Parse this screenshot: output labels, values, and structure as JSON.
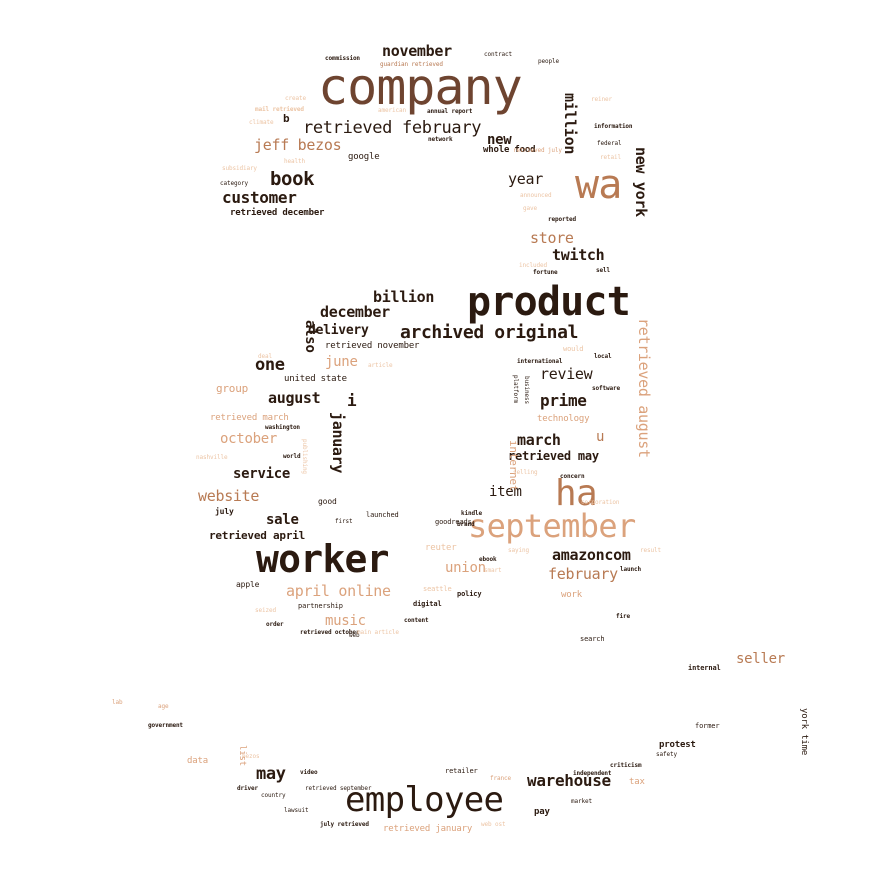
{
  "palette": {
    "dark": "#2b1a10",
    "brown": "#6e4430",
    "copper": "#b87a53",
    "peach": "#dba27c",
    "light": "#ecc4a4"
  },
  "words": [
    {
      "id": "product",
      "text": "product",
      "color": "dark"
    },
    {
      "id": "company",
      "text": "company",
      "color": "brown"
    },
    {
      "id": "worker",
      "text": "worker",
      "color": "dark"
    },
    {
      "id": "employee",
      "text": "employee",
      "color": "dark"
    },
    {
      "id": "september",
      "text": "september",
      "color": "peach"
    },
    {
      "id": "ha",
      "text": "ha",
      "color": "copper"
    },
    {
      "id": "wa",
      "text": "wa",
      "color": "copper"
    },
    {
      "id": "retrieved-february",
      "text": "retrieved february",
      "color": "dark"
    },
    {
      "id": "archived-original",
      "text": "archived original",
      "color": "dark"
    },
    {
      "id": "jeff-bezos",
      "text": "jeff bezos",
      "color": "copper"
    },
    {
      "id": "book",
      "text": "book",
      "color": "dark"
    },
    {
      "id": "customer",
      "text": "customer",
      "color": "dark"
    },
    {
      "id": "november",
      "text": "november",
      "color": "dark"
    },
    {
      "id": "new",
      "text": "new",
      "color": "dark"
    },
    {
      "id": "million",
      "text": "million",
      "color": "dark"
    },
    {
      "id": "new-york",
      "text": "new york",
      "color": "dark"
    },
    {
      "id": "year",
      "text": "year",
      "color": "dark"
    },
    {
      "id": "store",
      "text": "store",
      "color": "copper"
    },
    {
      "id": "twitch",
      "text": "twitch",
      "color": "dark"
    },
    {
      "id": "billion",
      "text": "billion",
      "color": "dark"
    },
    {
      "id": "december",
      "text": "december",
      "color": "dark"
    },
    {
      "id": "delivery",
      "text": "delivery",
      "color": "dark"
    },
    {
      "id": "also",
      "text": "also",
      "color": "dark"
    },
    {
      "id": "one",
      "text": "one",
      "color": "dark"
    },
    {
      "id": "june",
      "text": "june",
      "color": "peach"
    },
    {
      "id": "review",
      "text": "review",
      "color": "dark"
    },
    {
      "id": "retrieved-august",
      "text": "retrieved august",
      "color": "peach"
    },
    {
      "id": "prime",
      "text": "prime",
      "color": "dark"
    },
    {
      "id": "august",
      "text": "august",
      "color": "dark"
    },
    {
      "id": "october",
      "text": "october",
      "color": "peach"
    },
    {
      "id": "january",
      "text": "january",
      "color": "dark"
    },
    {
      "id": "march",
      "text": "march",
      "color": "dark"
    },
    {
      "id": "u",
      "text": "u",
      "color": "copper"
    },
    {
      "id": "retrieved-may",
      "text": "retrieved may",
      "color": "dark"
    },
    {
      "id": "service",
      "text": "service",
      "color": "dark"
    },
    {
      "id": "website",
      "text": "website",
      "color": "copper"
    },
    {
      "id": "item",
      "text": "item",
      "color": "dark"
    },
    {
      "id": "sale",
      "text": "sale",
      "color": "dark"
    },
    {
      "id": "retrieved-april",
      "text": "retrieved april",
      "color": "dark"
    },
    {
      "id": "amazoncom",
      "text": "amazoncom",
      "color": "dark"
    },
    {
      "id": "union",
      "text": "union",
      "color": "peach"
    },
    {
      "id": "february",
      "text": "february",
      "color": "copper"
    },
    {
      "id": "april-online",
      "text": "april online",
      "color": "peach"
    },
    {
      "id": "music",
      "text": "music",
      "color": "peach"
    },
    {
      "id": "seller",
      "text": "seller",
      "color": "copper"
    },
    {
      "id": "may",
      "text": "may",
      "color": "dark"
    },
    {
      "id": "warehouse",
      "text": "warehouse",
      "color": "dark"
    },
    {
      "id": "retrieved-december",
      "text": "retrieved december",
      "color": "dark"
    },
    {
      "id": "group",
      "text": "group",
      "color": "peach"
    },
    {
      "id": "internet",
      "text": "internet",
      "color": "peach"
    },
    {
      "id": "b",
      "text": "b",
      "color": "dark"
    },
    {
      "id": "google",
      "text": "google",
      "color": "dark"
    },
    {
      "id": "whole-food",
      "text": "whole food",
      "color": "dark"
    },
    {
      "id": "i",
      "text": "i",
      "color": "dark"
    },
    {
      "id": "united-state",
      "text": "united state",
      "color": "dark"
    },
    {
      "id": "retrieved-march",
      "text": "retrieved march",
      "color": "peach"
    },
    {
      "id": "technology",
      "text": "technology",
      "color": "peach"
    },
    {
      "id": "retrieved-november",
      "text": "retrieved november",
      "color": "dark"
    },
    {
      "id": "reuter",
      "text": "reuter",
      "color": "light"
    },
    {
      "id": "york-time",
      "text": "york time",
      "color": "dark"
    },
    {
      "id": "protest",
      "text": "protest",
      "color": "dark"
    },
    {
      "id": "retrieved-january",
      "text": "retrieved january",
      "color": "peach"
    },
    {
      "id": "pay",
      "text": "pay",
      "color": "dark"
    },
    {
      "id": "data",
      "text": "data",
      "color": "peach"
    },
    {
      "id": "july",
      "text": "july",
      "color": "dark"
    },
    {
      "id": "apple",
      "text": "apple",
      "color": "dark"
    },
    {
      "id": "good",
      "text": "good",
      "color": "dark"
    },
    {
      "id": "policy",
      "text": "policy",
      "color": "dark"
    },
    {
      "id": "digital",
      "text": "digital",
      "color": "dark"
    },
    {
      "id": "partnership",
      "text": "partnership",
      "color": "dark"
    },
    {
      "id": "launched",
      "text": "launched",
      "color": "dark"
    },
    {
      "id": "goodreads",
      "text": "goodreads",
      "color": "dark"
    },
    {
      "id": "seattle",
      "text": "seattle",
      "color": "light"
    },
    {
      "id": "workplace",
      "text": "work",
      "color": "peach"
    },
    {
      "id": "search",
      "text": "search",
      "color": "dark"
    },
    {
      "id": "retailer",
      "text": "retailer",
      "color": "dark"
    },
    {
      "id": "independent",
      "text": "independent",
      "color": "dark"
    },
    {
      "id": "market",
      "text": "market",
      "color": "dark"
    },
    {
      "id": "tax",
      "text": "tax",
      "color": "peach"
    },
    {
      "id": "safety",
      "text": "safety",
      "color": "dark"
    },
    {
      "id": "criticism",
      "text": "criticism",
      "color": "dark"
    },
    {
      "id": "former",
      "text": "former",
      "color": "dark"
    },
    {
      "id": "internal",
      "text": "internal",
      "color": "dark"
    },
    {
      "id": "government",
      "text": "government",
      "color": "dark"
    },
    {
      "id": "country",
      "text": "country",
      "color": "dark"
    },
    {
      "id": "video",
      "text": "video",
      "color": "dark"
    },
    {
      "id": "driver",
      "text": "driver",
      "color": "dark"
    },
    {
      "id": "lawsuit",
      "text": "lawsuit",
      "color": "dark"
    },
    {
      "id": "retrieved-september",
      "text": "retrieved september",
      "color": "dark"
    },
    {
      "id": "july-retrieved",
      "text": "july retrieved",
      "color": "dark"
    },
    {
      "id": "web-ost",
      "text": "web ost",
      "color": "light"
    },
    {
      "id": "france",
      "text": "france",
      "color": "peach"
    },
    {
      "id": "bezos",
      "text": "bezos",
      "color": "light"
    },
    {
      "id": "commission",
      "text": "commission",
      "color": "dark"
    },
    {
      "id": "guardian-retrieved",
      "text": "guardian retrieved",
      "color": "copper"
    },
    {
      "id": "contract",
      "text": "contract",
      "color": "dark"
    },
    {
      "id": "people",
      "text": "people",
      "color": "dark"
    },
    {
      "id": "annual-report",
      "text": "annual report",
      "color": "dark"
    },
    {
      "id": "information",
      "text": "information",
      "color": "dark"
    },
    {
      "id": "network",
      "text": "network",
      "color": "dark"
    },
    {
      "id": "federal",
      "text": "federal",
      "color": "dark"
    },
    {
      "id": "retail",
      "text": "retail",
      "color": "light"
    },
    {
      "id": "health",
      "text": "health",
      "color": "light"
    },
    {
      "id": "subsidiary",
      "text": "subsidiary",
      "color": "light"
    },
    {
      "id": "category",
      "text": "category",
      "color": "dark"
    },
    {
      "id": "climate",
      "text": "climate",
      "color": "light"
    },
    {
      "id": "create",
      "text": "create",
      "color": "light"
    },
    {
      "id": "reported",
      "text": "reported",
      "color": "dark"
    },
    {
      "id": "fortune",
      "text": "fortune",
      "color": "dark"
    },
    {
      "id": "sell",
      "text": "sell",
      "color": "dark"
    },
    {
      "id": "included",
      "text": "included",
      "color": "light"
    },
    {
      "id": "world",
      "text": "world",
      "color": "dark"
    },
    {
      "id": "deal",
      "text": "deal",
      "color": "light"
    },
    {
      "id": "washington",
      "text": "washington",
      "color": "dark"
    },
    {
      "id": "nashville",
      "text": "nashville",
      "color": "light"
    },
    {
      "id": "international",
      "text": "international",
      "color": "dark"
    },
    {
      "id": "software",
      "text": "software",
      "color": "dark"
    },
    {
      "id": "would",
      "text": "would",
      "color": "light"
    },
    {
      "id": "local",
      "text": "local",
      "color": "dark"
    },
    {
      "id": "article",
      "text": "article",
      "color": "light"
    },
    {
      "id": "selling",
      "text": "selling",
      "color": "light"
    },
    {
      "id": "concern",
      "text": "concern",
      "color": "dark"
    },
    {
      "id": "corporation",
      "text": "corporation",
      "color": "light"
    },
    {
      "id": "first",
      "text": "first",
      "color": "dark"
    },
    {
      "id": "brand",
      "text": "brand",
      "color": "dark"
    },
    {
      "id": "kindle",
      "text": "kindle",
      "color": "dark"
    },
    {
      "id": "result",
      "text": "result",
      "color": "light"
    },
    {
      "id": "launch",
      "text": "launch",
      "color": "dark"
    },
    {
      "id": "ebook",
      "text": "ebook",
      "color": "dark"
    },
    {
      "id": "platform",
      "text": "platform",
      "color": "dark"
    },
    {
      "id": "business",
      "text": "business",
      "color": "dark"
    },
    {
      "id": "order",
      "text": "order",
      "color": "dark"
    },
    {
      "id": "content",
      "text": "content",
      "color": "dark"
    },
    {
      "id": "fire",
      "text": "fire",
      "color": "dark"
    },
    {
      "id": "web",
      "text": "web",
      "color": "dark"
    },
    {
      "id": "list",
      "text": "list",
      "color": "peach"
    },
    {
      "id": "age",
      "text": "age",
      "color": "peach"
    },
    {
      "id": "lab",
      "text": "lab",
      "color": "peach"
    },
    {
      "id": "retrieved-july",
      "text": "retrieved july",
      "color": "peach"
    },
    {
      "id": "announced",
      "text": "announced",
      "color": "light"
    },
    {
      "id": "gave",
      "text": "gave",
      "color": "light"
    },
    {
      "id": "american",
      "text": "american",
      "color": "light"
    },
    {
      "id": "reiner",
      "text": "reiner",
      "color": "light"
    },
    {
      "id": "mail-retrieved",
      "text": "mail retrieved",
      "color": "light"
    },
    {
      "id": "seized",
      "text": "seized",
      "color": "light"
    },
    {
      "id": "publishing",
      "text": "publishing",
      "color": "light"
    },
    {
      "id": "smart",
      "text": "smart",
      "color": "light"
    },
    {
      "id": "saying",
      "text": "saying",
      "color": "light"
    },
    {
      "id": "retrieved-october",
      "text": "retrieved october",
      "color": "dark"
    },
    {
      "id": "main-article",
      "text": "main article",
      "color": "light"
    }
  ]
}
